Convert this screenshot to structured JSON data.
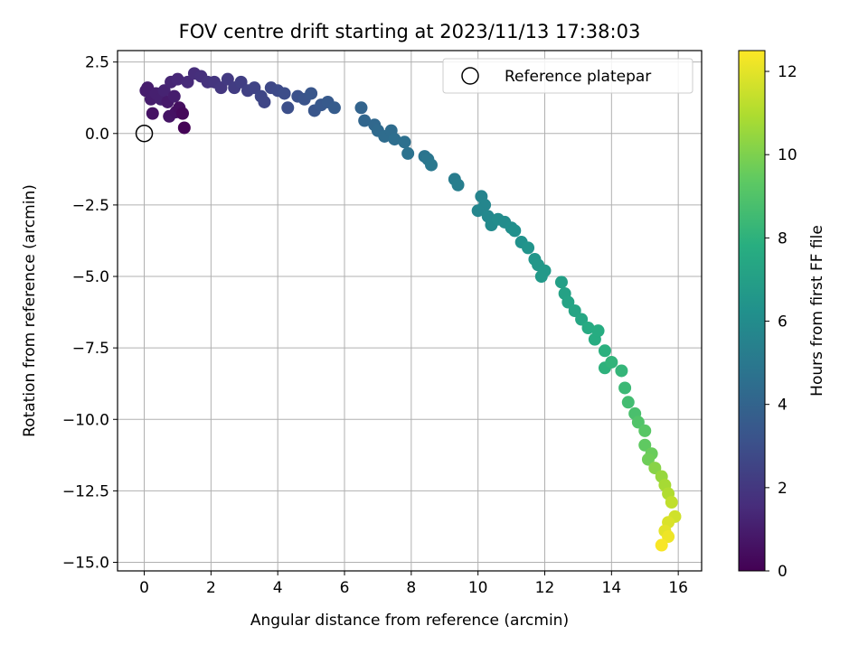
{
  "chart_data": {
    "type": "scatter",
    "title": "FOV centre drift starting at 2023/11/13 17:38:03",
    "xlabel": "Angular distance from reference (arcmin)",
    "ylabel": "Rotation from reference (arcmin)",
    "xlim": [
      -0.8,
      16.7
    ],
    "ylim": [
      -15.3,
      2.9
    ],
    "xticks": [
      0,
      2,
      4,
      6,
      8,
      10,
      12,
      14,
      16
    ],
    "yticks": [
      2.5,
      0.0,
      -2.5,
      -5.0,
      -7.5,
      -10.0,
      -12.5,
      -15.0
    ],
    "xtick_labels": [
      "0",
      "2",
      "4",
      "6",
      "8",
      "10",
      "12",
      "14",
      "16"
    ],
    "ytick_labels": [
      "2.5",
      "0.0",
      "−2.5",
      "−5.0",
      "−7.5",
      "−10.0",
      "−12.5",
      "−15.0"
    ],
    "grid": true,
    "legend": {
      "position": "top-right",
      "entries": [
        "Reference platepar"
      ]
    },
    "reference_point": {
      "x": 0.0,
      "y": 0.0
    },
    "colorbar": {
      "label": "Hours from first FF file",
      "colormap": "viridis",
      "range": [
        0,
        12.5
      ],
      "ticks": [
        0,
        2,
        4,
        6,
        8,
        10,
        12
      ],
      "tick_labels": [
        "0",
        "2",
        "4",
        "6",
        "8",
        "10",
        "12"
      ]
    },
    "points": [
      {
        "x": 0.05,
        "y": 1.5,
        "c": 1.0
      },
      {
        "x": 0.1,
        "y": 1.6,
        "c": 1.0
      },
      {
        "x": 0.2,
        "y": 1.2,
        "c": 1.0
      },
      {
        "x": 0.25,
        "y": 0.7,
        "c": 0.6
      },
      {
        "x": 0.35,
        "y": 1.4,
        "c": 1.1
      },
      {
        "x": 0.5,
        "y": 1.2,
        "c": 1.1
      },
      {
        "x": 0.6,
        "y": 1.5,
        "c": 1.2
      },
      {
        "x": 0.7,
        "y": 1.1,
        "c": 0.9
      },
      {
        "x": 0.75,
        "y": 0.6,
        "c": 0.7
      },
      {
        "x": 0.8,
        "y": 1.8,
        "c": 1.3
      },
      {
        "x": 0.9,
        "y": 1.3,
        "c": 1.0
      },
      {
        "x": 0.95,
        "y": 0.75,
        "c": 0.6
      },
      {
        "x": 1.0,
        "y": 1.9,
        "c": 1.4
      },
      {
        "x": 1.05,
        "y": 0.9,
        "c": 0.5
      },
      {
        "x": 1.15,
        "y": 0.7,
        "c": 0.3
      },
      {
        "x": 1.2,
        "y": 0.2,
        "c": 0.1
      },
      {
        "x": 1.3,
        "y": 1.8,
        "c": 1.5
      },
      {
        "x": 1.5,
        "y": 2.1,
        "c": 1.6
      },
      {
        "x": 1.7,
        "y": 2.0,
        "c": 1.7
      },
      {
        "x": 1.9,
        "y": 1.8,
        "c": 1.8
      },
      {
        "x": 2.1,
        "y": 1.8,
        "c": 1.9
      },
      {
        "x": 2.3,
        "y": 1.6,
        "c": 2.0
      },
      {
        "x": 2.5,
        "y": 1.9,
        "c": 2.1
      },
      {
        "x": 2.7,
        "y": 1.6,
        "c": 2.2
      },
      {
        "x": 2.9,
        "y": 1.8,
        "c": 2.3
      },
      {
        "x": 3.1,
        "y": 1.5,
        "c": 2.4
      },
      {
        "x": 3.3,
        "y": 1.6,
        "c": 2.5
      },
      {
        "x": 3.5,
        "y": 1.3,
        "c": 2.6
      },
      {
        "x": 3.6,
        "y": 1.1,
        "c": 2.6
      },
      {
        "x": 3.8,
        "y": 1.6,
        "c": 2.7
      },
      {
        "x": 4.0,
        "y": 1.5,
        "c": 2.8
      },
      {
        "x": 4.2,
        "y": 1.4,
        "c": 2.9
      },
      {
        "x": 4.3,
        "y": 0.9,
        "c": 3.0
      },
      {
        "x": 4.6,
        "y": 1.3,
        "c": 3.1
      },
      {
        "x": 4.8,
        "y": 1.2,
        "c": 3.2
      },
      {
        "x": 5.0,
        "y": 1.4,
        "c": 3.3
      },
      {
        "x": 5.1,
        "y": 0.8,
        "c": 3.3
      },
      {
        "x": 5.3,
        "y": 1.0,
        "c": 3.4
      },
      {
        "x": 5.5,
        "y": 1.1,
        "c": 3.5
      },
      {
        "x": 5.7,
        "y": 0.9,
        "c": 3.6
      },
      {
        "x": 6.5,
        "y": 0.9,
        "c": 4.0
      },
      {
        "x": 6.6,
        "y": 0.45,
        "c": 4.1
      },
      {
        "x": 6.9,
        "y": 0.3,
        "c": 4.2
      },
      {
        "x": 7.0,
        "y": 0.1,
        "c": 4.3
      },
      {
        "x": 7.2,
        "y": -0.1,
        "c": 4.4
      },
      {
        "x": 7.4,
        "y": 0.1,
        "c": 4.4
      },
      {
        "x": 7.5,
        "y": -0.2,
        "c": 4.5
      },
      {
        "x": 7.8,
        "y": -0.3,
        "c": 4.6
      },
      {
        "x": 7.9,
        "y": -0.7,
        "c": 4.7
      },
      {
        "x": 8.4,
        "y": -0.8,
        "c": 4.8
      },
      {
        "x": 8.5,
        "y": -0.9,
        "c": 4.9
      },
      {
        "x": 8.6,
        "y": -1.1,
        "c": 5.0
      },
      {
        "x": 9.3,
        "y": -1.6,
        "c": 5.2
      },
      {
        "x": 9.4,
        "y": -1.8,
        "c": 5.3
      },
      {
        "x": 10.1,
        "y": -2.2,
        "c": 5.6
      },
      {
        "x": 10.2,
        "y": -2.5,
        "c": 5.7
      },
      {
        "x": 10.0,
        "y": -2.7,
        "c": 5.7
      },
      {
        "x": 10.3,
        "y": -2.9,
        "c": 5.8
      },
      {
        "x": 10.4,
        "y": -3.2,
        "c": 5.9
      },
      {
        "x": 10.6,
        "y": -3.0,
        "c": 6.0
      },
      {
        "x": 10.8,
        "y": -3.1,
        "c": 6.0
      },
      {
        "x": 11.0,
        "y": -3.3,
        "c": 6.1
      },
      {
        "x": 11.1,
        "y": -3.4,
        "c": 6.2
      },
      {
        "x": 11.3,
        "y": -3.8,
        "c": 6.3
      },
      {
        "x": 11.5,
        "y": -4.0,
        "c": 6.4
      },
      {
        "x": 11.7,
        "y": -4.4,
        "c": 6.5
      },
      {
        "x": 11.8,
        "y": -4.6,
        "c": 6.6
      },
      {
        "x": 12.0,
        "y": -4.8,
        "c": 6.7
      },
      {
        "x": 11.9,
        "y": -5.0,
        "c": 6.7
      },
      {
        "x": 12.5,
        "y": -5.2,
        "c": 7.0
      },
      {
        "x": 12.6,
        "y": -5.6,
        "c": 7.1
      },
      {
        "x": 12.7,
        "y": -5.9,
        "c": 7.2
      },
      {
        "x": 12.9,
        "y": -6.2,
        "c": 7.3
      },
      {
        "x": 13.1,
        "y": -6.5,
        "c": 7.4
      },
      {
        "x": 13.3,
        "y": -6.8,
        "c": 7.6
      },
      {
        "x": 13.5,
        "y": -7.2,
        "c": 7.7
      },
      {
        "x": 13.6,
        "y": -6.9,
        "c": 7.7
      },
      {
        "x": 13.8,
        "y": -7.6,
        "c": 7.9
      },
      {
        "x": 13.8,
        "y": -8.2,
        "c": 8.0
      },
      {
        "x": 14.0,
        "y": -8.0,
        "c": 8.1
      },
      {
        "x": 14.3,
        "y": -8.3,
        "c": 8.2
      },
      {
        "x": 14.4,
        "y": -8.9,
        "c": 8.4
      },
      {
        "x": 14.5,
        "y": -9.4,
        "c": 8.6
      },
      {
        "x": 14.7,
        "y": -9.8,
        "c": 8.8
      },
      {
        "x": 14.8,
        "y": -10.1,
        "c": 9.0
      },
      {
        "x": 15.0,
        "y": -10.4,
        "c": 9.2
      },
      {
        "x": 15.0,
        "y": -10.9,
        "c": 9.4
      },
      {
        "x": 15.2,
        "y": -11.2,
        "c": 9.6
      },
      {
        "x": 15.1,
        "y": -11.4,
        "c": 9.7
      },
      {
        "x": 15.3,
        "y": -11.7,
        "c": 10.2
      },
      {
        "x": 15.5,
        "y": -12.0,
        "c": 10.5
      },
      {
        "x": 15.6,
        "y": -12.3,
        "c": 10.8
      },
      {
        "x": 15.7,
        "y": -12.6,
        "c": 11.0
      },
      {
        "x": 15.8,
        "y": -12.9,
        "c": 11.3
      },
      {
        "x": 15.9,
        "y": -13.4,
        "c": 11.6
      },
      {
        "x": 15.7,
        "y": -13.6,
        "c": 11.8
      },
      {
        "x": 15.6,
        "y": -13.9,
        "c": 12.0
      },
      {
        "x": 15.7,
        "y": -14.1,
        "c": 12.2
      },
      {
        "x": 15.5,
        "y": -14.4,
        "c": 12.4
      }
    ]
  }
}
